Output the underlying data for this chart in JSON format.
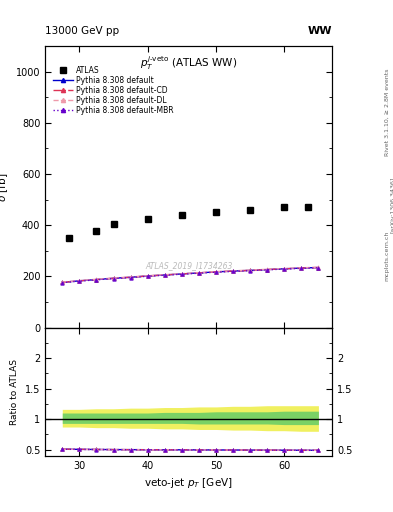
{
  "title_top": "13000 GeV pp",
  "title_right": "WW",
  "plot_title": "$p_T^{j\\text{-veto}}$ (ATLAS WW)",
  "watermark": "ATLAS_2019_I1734263",
  "right_label_top": "Rivet 3.1.10, ≥ 2.8M events",
  "right_label_mid": "[arXiv:1306.3436]",
  "right_label_bot": "mcplots.cern.ch",
  "atlas_x": [
    28.5,
    32.5,
    35.0,
    40.0,
    45.0,
    50.0,
    55.0,
    60.0,
    63.5
  ],
  "atlas_y": [
    352,
    378,
    405,
    424,
    440,
    453,
    459,
    470,
    471
  ],
  "pythia_x": [
    27.5,
    30,
    32.5,
    35,
    37.5,
    40,
    42.5,
    45,
    47.5,
    50,
    52.5,
    55,
    57.5,
    60,
    62.5,
    65
  ],
  "pythia_default_y": [
    177,
    183,
    188,
    193,
    197,
    202,
    206,
    210,
    214,
    218,
    221,
    224,
    227,
    230,
    233,
    235
  ],
  "pythia_cd_y": [
    177,
    183,
    188,
    193,
    197,
    202,
    206,
    210,
    214,
    218,
    221,
    224,
    227,
    230,
    233,
    235
  ],
  "pythia_dl_y": [
    178,
    184,
    189,
    194,
    198,
    203,
    207,
    211,
    215,
    219,
    222,
    225,
    228,
    231,
    234,
    236
  ],
  "pythia_mbr_y": [
    176,
    182,
    187,
    192,
    196,
    201,
    205,
    209,
    213,
    217,
    220,
    223,
    226,
    229,
    232,
    234
  ],
  "ratio_x": [
    27.5,
    30,
    32.5,
    35,
    37.5,
    40,
    42.5,
    45,
    47.5,
    50,
    52.5,
    55,
    57.5,
    60,
    62.5,
    65
  ],
  "ratio_default": [
    0.507,
    0.504,
    0.502,
    0.5,
    0.499,
    0.498,
    0.497,
    0.496,
    0.495,
    0.494,
    0.493,
    0.492,
    0.491,
    0.49,
    0.489,
    0.488
  ],
  "ratio_cd": [
    0.507,
    0.504,
    0.502,
    0.5,
    0.499,
    0.498,
    0.497,
    0.496,
    0.495,
    0.494,
    0.493,
    0.492,
    0.491,
    0.49,
    0.489,
    0.488
  ],
  "ratio_dl": [
    0.507,
    0.504,
    0.502,
    0.5,
    0.499,
    0.498,
    0.497,
    0.496,
    0.495,
    0.494,
    0.493,
    0.492,
    0.491,
    0.49,
    0.489,
    0.488
  ],
  "ratio_mbr": [
    0.505,
    0.503,
    0.501,
    0.499,
    0.498,
    0.497,
    0.496,
    0.495,
    0.494,
    0.493,
    0.492,
    0.491,
    0.49,
    0.489,
    0.488,
    0.487
  ],
  "band_x": [
    27.5,
    30,
    32.5,
    35,
    37.5,
    40,
    42.5,
    45,
    47.5,
    50,
    52.5,
    55,
    57.5,
    60,
    62.5,
    65
  ],
  "band_green_upper": [
    1.1,
    1.1,
    1.1,
    1.1,
    1.1,
    1.1,
    1.11,
    1.11,
    1.11,
    1.12,
    1.12,
    1.12,
    1.12,
    1.13,
    1.13,
    1.13
  ],
  "band_green_lower": [
    0.93,
    0.93,
    0.93,
    0.93,
    0.93,
    0.93,
    0.93,
    0.93,
    0.92,
    0.92,
    0.92,
    0.92,
    0.92,
    0.91,
    0.91,
    0.91
  ],
  "band_yellow_upper": [
    1.16,
    1.16,
    1.17,
    1.17,
    1.18,
    1.18,
    1.19,
    1.19,
    1.2,
    1.2,
    1.21,
    1.21,
    1.22,
    1.22,
    1.22,
    1.22
  ],
  "band_yellow_lower": [
    0.87,
    0.87,
    0.86,
    0.86,
    0.85,
    0.85,
    0.84,
    0.84,
    0.83,
    0.83,
    0.82,
    0.82,
    0.81,
    0.81,
    0.8,
    0.8
  ],
  "color_default": "#0000cc",
  "color_cd": "#dd3355",
  "color_dl": "#ee99aa",
  "color_mbr": "#6600cc",
  "xlim": [
    25,
    67
  ],
  "ylim_main_bottom": 0,
  "ylim_main_top": 1100,
  "ylim_ratio_bottom": 0.4,
  "ylim_ratio_top": 2.5,
  "xlabel": "veto-jet $p_T$ [GeV]",
  "ylabel_main": "$\\sigma$ [fb]",
  "ylabel_ratio": "Ratio to ATLAS"
}
